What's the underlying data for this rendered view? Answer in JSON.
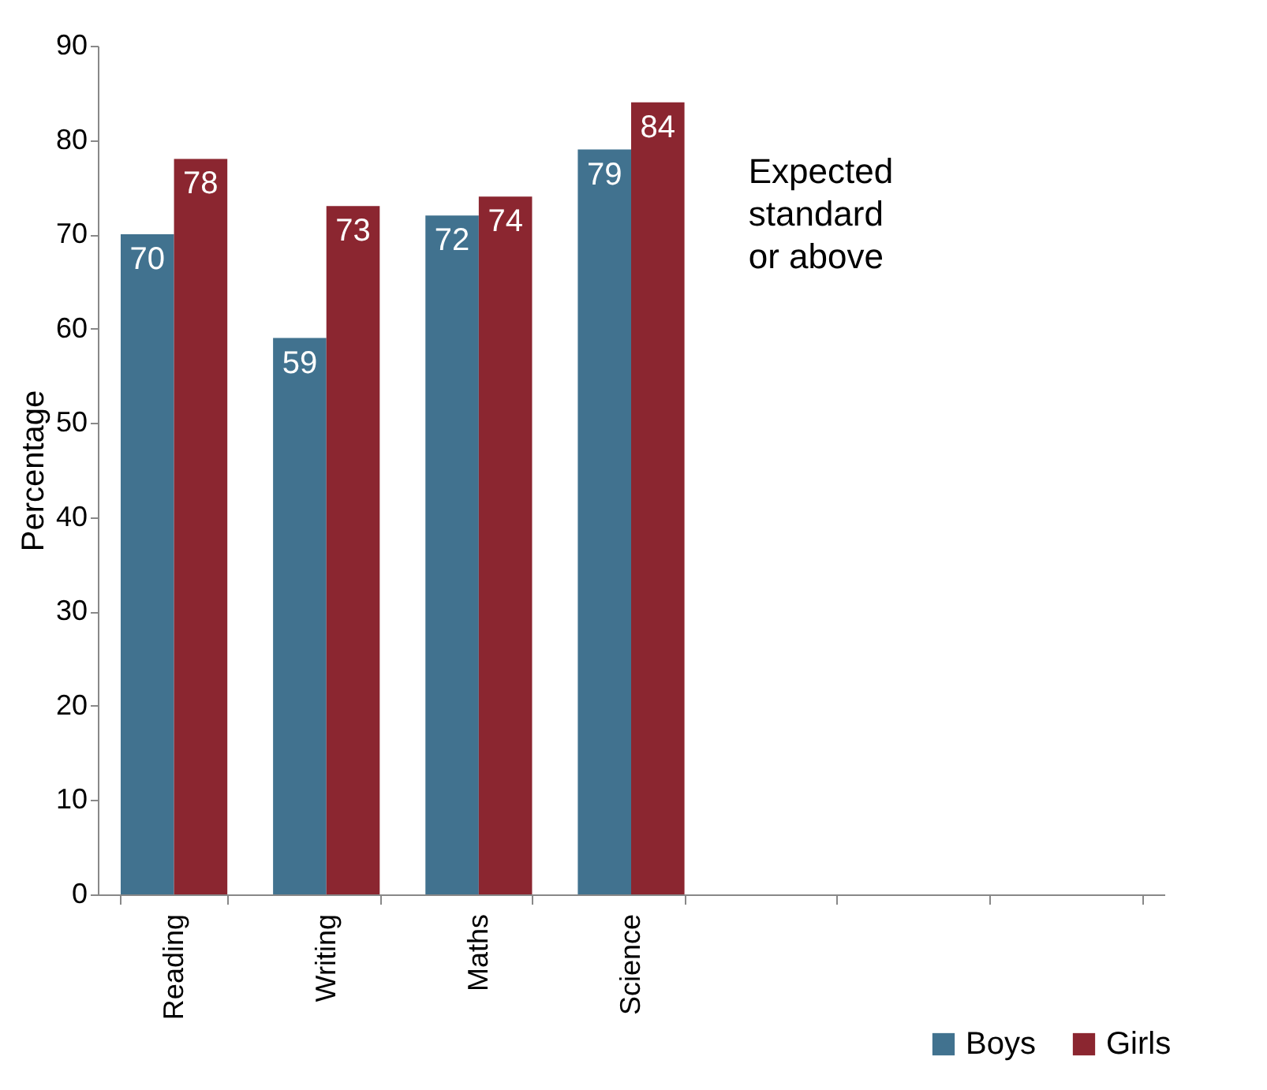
{
  "chart_data": {
    "type": "bar",
    "ylabel": "Percentage",
    "categories": [
      "Reading",
      "Writing",
      "Maths",
      "Science",
      null,
      null,
      null
    ],
    "series": [
      {
        "name": "Boys",
        "color": "#41728f",
        "values": [
          70,
          59,
          72,
          79,
          null,
          null,
          null
        ]
      },
      {
        "name": "Girls",
        "color": "#8b2630",
        "values": [
          78,
          73,
          74,
          84,
          null,
          null,
          null
        ]
      }
    ],
    "ylim": [
      0,
      90
    ],
    "yticks": [
      0,
      10,
      20,
      30,
      40,
      50,
      60,
      70,
      80,
      90
    ],
    "data_labels": true,
    "legend": "bottom right",
    "grid": false,
    "annotations": [
      "Expected\nstandard\nor above"
    ]
  }
}
